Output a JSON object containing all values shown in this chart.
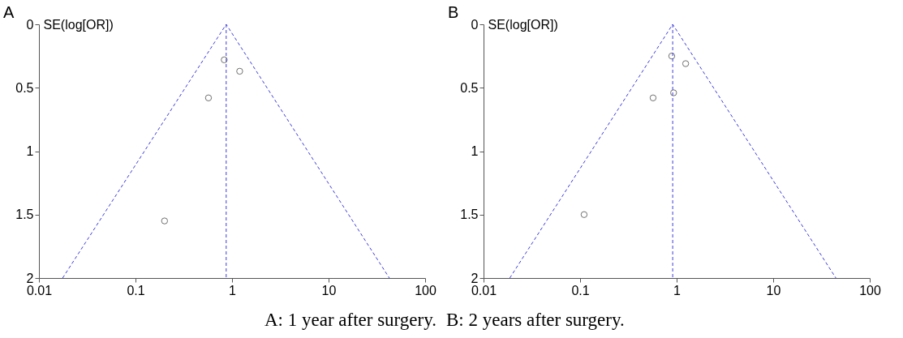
{
  "chart_data": [
    {
      "type": "scatter",
      "title": "A",
      "ylabel": "SE(log[OR])",
      "log": "x",
      "xlim": [
        0.01,
        100
      ],
      "xticks": [
        0.01,
        0.1,
        1,
        10,
        100
      ],
      "ylim": [
        2,
        0
      ],
      "yticks": [
        0,
        0.5,
        1,
        1.5,
        2
      ],
      "grid": false,
      "series": [
        {
          "type": "line",
          "color": "#3c3cdc",
          "line_style": "dashed",
          "marker": "none",
          "x": [
            0.0176,
            0.87,
            42.6
          ],
          "values": [
            2,
            0,
            2
          ]
        },
        {
          "type": "scatter",
          "color": "#333333",
          "marker": "circle",
          "x": [
            0.83,
            1.2,
            0.57,
            0.2
          ],
          "values": [
            0.28,
            0.37,
            0.58,
            1.55
          ]
        }
      ],
      "ref_lines": [
        {
          "axis": "x",
          "value": 0.87,
          "color": "#3c3cdc",
          "line_style": "dashed"
        }
      ],
      "annotations": [
        "A: 1 year after surgery."
      ]
    },
    {
      "type": "scatter",
      "title": "B",
      "ylabel": "SE(log[OR])",
      "log": "x",
      "xlim": [
        0.01,
        100
      ],
      "xticks": [
        0.01,
        0.1,
        1,
        10,
        100
      ],
      "ylim": [
        2,
        0
      ],
      "yticks": [
        0,
        0.5,
        1,
        1.5,
        2
      ],
      "grid": false,
      "series": [
        {
          "type": "line",
          "color": "#3c3cdc",
          "line_style": "dashed",
          "marker": "none",
          "x": [
            0.0187,
            0.91,
            44.6
          ],
          "values": [
            2,
            0,
            2
          ]
        },
        {
          "type": "scatter",
          "color": "#333333",
          "marker": "circle",
          "x": [
            0.89,
            1.24,
            0.93,
            0.57,
            0.11
          ],
          "values": [
            0.25,
            0.31,
            0.54,
            0.58,
            1.5
          ]
        }
      ],
      "ref_lines": [
        {
          "axis": "x",
          "value": 0.91,
          "color": "#3c3cdc",
          "line_style": "dashed"
        }
      ],
      "annotations": [
        "B: 2 years after surgery."
      ]
    }
  ]
}
